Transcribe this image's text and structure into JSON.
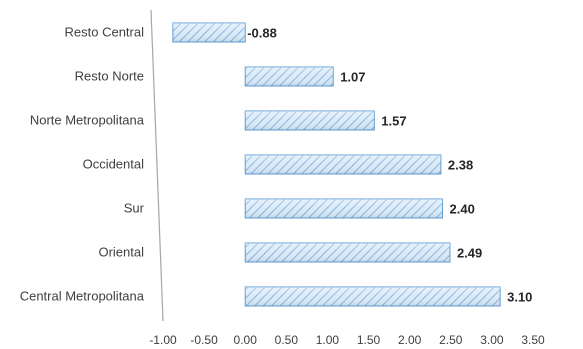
{
  "chart_data": {
    "type": "bar",
    "orientation": "horizontal",
    "categories": [
      "Resto Central",
      "Resto Norte",
      "Norte Metropolitana",
      "Occidental",
      "Sur",
      "Oriental",
      "Central Metropolitana"
    ],
    "values": [
      -0.88,
      1.07,
      1.57,
      2.38,
      2.4,
      2.49,
      3.1
    ],
    "data_labels": [
      "-0.88",
      "1.07",
      "1.57",
      "2.38",
      "2.40",
      "2.49",
      "3.10"
    ],
    "xlim": [
      -1.0,
      3.5
    ],
    "x_ticks": [
      "-1.00",
      "-0.50",
      "0.00",
      "0.50",
      "1.00",
      "1.50",
      "2.00",
      "2.50",
      "3.00",
      "3.50"
    ],
    "title": "",
    "xlabel": "",
    "ylabel": "",
    "grid": false,
    "legend": "none",
    "colors": {
      "bar_fill": "#dceaf7",
      "bar_hatch": "#6fa8dc",
      "bar_edge": "#5b9bd5",
      "axis": "#a6a6a6"
    }
  }
}
